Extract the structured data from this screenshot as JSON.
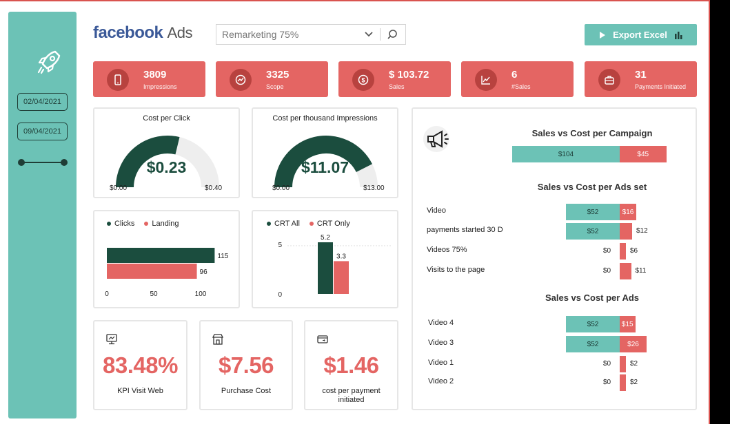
{
  "header": {
    "brand_main": "facebook",
    "brand_sub": "Ads",
    "filter_value": "Remarketing 75%",
    "export_label": "Export Excel"
  },
  "sidebar": {
    "date_start": "02/04/2021",
    "date_end": "09/04/2021"
  },
  "kpis": [
    {
      "value": "3809",
      "label": "Impressions",
      "icon": "phone-icon"
    },
    {
      "value": "3325",
      "label": "Scope",
      "icon": "speed-icon"
    },
    {
      "value": "$ 103.72",
      "label": "Sales",
      "icon": "dollar-icon"
    },
    {
      "value": "6",
      "label": "#Sales",
      "icon": "trend-icon"
    },
    {
      "value": "31",
      "label": "Payments Initiated",
      "icon": "briefcase-icon"
    }
  ],
  "gauges": [
    {
      "title": "Cost per Click",
      "value_text": "$0.23",
      "min_text": "$0.00",
      "max_text": "$0.40",
      "value": 0.23,
      "min": 0,
      "max": 0.4
    },
    {
      "title": "Cost per thousand Impressions",
      "value_text": "$11.07",
      "min_text": "$0.00",
      "max_text": "$13.00",
      "value": 11.07,
      "min": 0,
      "max": 13.0
    }
  ],
  "colors": {
    "teal": "#6cc2b6",
    "red": "#e46563",
    "dark_green": "#1b4d3e",
    "gauge_track": "#eeeeee"
  },
  "small_cards": [
    {
      "value": "83.48%",
      "caption": "KPI Visit Web",
      "icon": "monitor-icon"
    },
    {
      "value": "$7.56",
      "caption": "Purchase Cost",
      "icon": "store-icon"
    },
    {
      "value": "$1.46",
      "caption": "cost per payment initiated",
      "icon": "payment-icon"
    }
  ],
  "chart_data": [
    {
      "type": "bar",
      "orientation": "horizontal",
      "series": [
        {
          "name": "Clicks",
          "values": [
            115
          ]
        },
        {
          "name": "Landing",
          "values": [
            96
          ]
        }
      ],
      "xticks": [
        "0",
        "50",
        "100"
      ],
      "xlim": [
        0,
        115
      ],
      "legend": "top"
    },
    {
      "type": "bar",
      "series": [
        {
          "name": "CRT All",
          "values": [
            5.2
          ]
        },
        {
          "name": "CRT Only",
          "values": [
            3.3
          ]
        }
      ],
      "yticks": [
        "0",
        "5"
      ],
      "ylim": [
        0,
        5.2
      ],
      "legend": "top"
    },
    {
      "type": "bar",
      "orientation": "horizontal",
      "title": "Sales vs Cost per Campaign",
      "categories": [
        ""
      ],
      "series": [
        {
          "name": "Sales",
          "values": [
            104
          ],
          "labels": [
            "$104"
          ]
        },
        {
          "name": "Cost",
          "values": [
            45
          ],
          "labels": [
            "$45"
          ]
        }
      ]
    },
    {
      "type": "bar",
      "orientation": "horizontal",
      "title": "Sales vs Cost per Ads set",
      "categories": [
        "Video",
        "payments started 30 D",
        "Videos 75%",
        "Visits to the page"
      ],
      "series": [
        {
          "name": "Sales",
          "values": [
            52,
            52,
            0,
            0
          ],
          "labels": [
            "$52",
            "$52",
            "$0",
            "$0"
          ]
        },
        {
          "name": "Cost",
          "values": [
            16,
            12,
            6,
            11
          ],
          "labels": [
            "$16",
            "$12",
            "$6",
            "$11"
          ]
        }
      ]
    },
    {
      "type": "bar",
      "orientation": "horizontal",
      "title": "Sales vs Cost per Ads",
      "categories": [
        "Video 4",
        "Video 3",
        "Video 1",
        "Video 2"
      ],
      "series": [
        {
          "name": "Sales",
          "values": [
            52,
            52,
            0,
            0
          ],
          "labels": [
            "$52",
            "$52",
            "$0",
            "$0"
          ]
        },
        {
          "name": "Cost",
          "values": [
            15,
            26,
            2,
            2
          ],
          "labels": [
            "$15",
            "$26",
            "$2",
            "$2"
          ]
        }
      ]
    }
  ]
}
